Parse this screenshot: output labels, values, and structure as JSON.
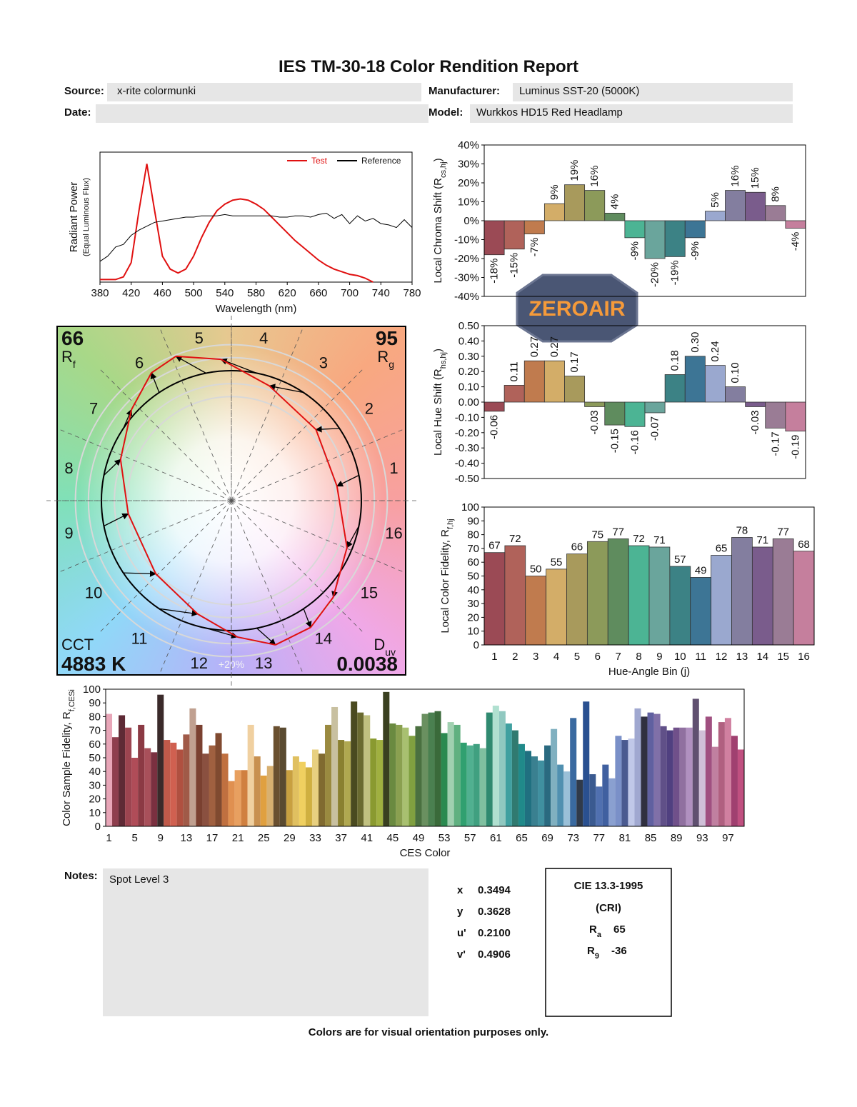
{
  "header": {
    "title": "IES TM-30-18 Color Rendition Report",
    "fields": [
      {
        "label": "Source:",
        "value": "x-rite colormunki"
      },
      {
        "label": "Manufacturer:",
        "value": "Luminus SST-20 (5000K)"
      },
      {
        "label": "Date:"
      },
      {
        "label": "Model:",
        "value": "Wurkkos HD15 Red Headlamp"
      }
    ]
  },
  "logo": {
    "text": "ZEROAIR"
  },
  "vector_graphic": {
    "hue_bins": [
      1,
      2,
      3,
      4,
      5,
      6,
      7,
      8,
      9,
      10,
      11,
      12,
      13,
      14,
      15,
      16
    ],
    "scale_label": "+20%",
    "rf": 66,
    "rf_label": "R",
    "rf_sub": "f",
    "rg": 95,
    "rg_label": "R",
    "rg_sub": "g",
    "cct_label": "CCT",
    "cct": "4883 K",
    "duv_label": "D",
    "duv_sub": "uv",
    "duv": 0.0038
  },
  "chart_data": [
    {
      "type": "line",
      "x": [
        380,
        390,
        400,
        410,
        420,
        430,
        440,
        450,
        460,
        470,
        480,
        490,
        500,
        510,
        520,
        530,
        540,
        550,
        560,
        570,
        580,
        590,
        600,
        610,
        620,
        630,
        640,
        650,
        660,
        670,
        680,
        690,
        700,
        710,
        720,
        730,
        740,
        750,
        760,
        770,
        780
      ],
      "series": [
        {
          "name": "Test",
          "color": "#e01010",
          "values": [
            0.02,
            0.02,
            0.02,
            0.04,
            0.15,
            0.55,
            0.91,
            0.55,
            0.2,
            0.1,
            0.07,
            0.1,
            0.2,
            0.34,
            0.46,
            0.55,
            0.6,
            0.63,
            0.64,
            0.63,
            0.6,
            0.56,
            0.5,
            0.44,
            0.38,
            0.32,
            0.27,
            0.22,
            0.17,
            0.13,
            0.1,
            0.08,
            0.06,
            0.05,
            0.03,
            0,
            null,
            null,
            null,
            null,
            null
          ]
        },
        {
          "name": "Reference",
          "color": "#000000",
          "values": [
            0.16,
            0.2,
            0.27,
            0.29,
            0.36,
            0.4,
            0.43,
            0.46,
            0.47,
            0.48,
            0.49,
            0.5,
            0.5,
            0.51,
            0.51,
            0.51,
            0.52,
            0.51,
            0.51,
            0.51,
            0.51,
            0.51,
            0.51,
            0.5,
            0.5,
            0.51,
            0.51,
            0.5,
            0.52,
            0.53,
            0.49,
            0.52,
            0.45,
            0.51,
            0.47,
            0.49,
            0.45,
            0.44,
            0.42,
            0.48,
            0.42
          ]
        }
      ],
      "xlim": [
        380,
        780
      ],
      "xticks": [
        380,
        420,
        460,
        500,
        540,
        580,
        620,
        660,
        700,
        740,
        780
      ],
      "ylim": [
        0,
        1
      ],
      "xlabel": "Wavelength (nm)",
      "ylabel": "Radiant Power",
      "ylabel_note": "(Equal Luminous Flux)",
      "legend": "upper right"
    },
    {
      "type": "bar",
      "values": [
        -18,
        -15,
        -7,
        9,
        19,
        16,
        4,
        -9,
        -20,
        -19,
        -9,
        5,
        16,
        15,
        8,
        -4
      ],
      "value_labels": [
        "-18%",
        "-15%",
        "-7%",
        "9%",
        "19%",
        "16%",
        "4%",
        "-9%",
        "-20%",
        "-19%",
        "-9%",
        "5%",
        "16%",
        "15%",
        "8%",
        "-4%"
      ],
      "colors": [
        "#9b4a55",
        "#b0625a",
        "#c07b4e",
        "#d3ad68",
        "#a89a5c",
        "#8c9a5a",
        "#5f8c5e",
        "#4cb494",
        "#6aa59c",
        "#3c8285",
        "#3d7595",
        "#9aa8cf",
        "#837e9f",
        "#7a5c8c",
        "#9a7c95",
        "#c57f9d"
      ],
      "ylim": [
        -40,
        40
      ],
      "yticks": [
        {
          "value": 40,
          "label": "40%"
        },
        {
          "value": 30,
          "label": "30%"
        },
        {
          "value": 20,
          "label": "20%"
        },
        {
          "value": 10,
          "label": "10%"
        },
        {
          "value": 0,
          "label": "0%"
        },
        {
          "value": -10,
          "label": "-10%"
        },
        {
          "value": -20,
          "label": "-20%"
        },
        {
          "value": -30,
          "label": "-30%"
        },
        {
          "value": -40,
          "label": "-40%"
        }
      ],
      "ylabel": "Local Chroma Shift (R",
      "ylabel_sub": "cs,hj",
      "ylabel_end": ")"
    },
    {
      "type": "bar",
      "values": [
        -0.06,
        0.11,
        0.27,
        0.27,
        0.17,
        -0.03,
        -0.15,
        -0.16,
        -0.07,
        0.18,
        0.3,
        0.24,
        0.1,
        -0.03,
        -0.17,
        -0.19
      ],
      "value_labels": [
        "-0.06",
        "0.11",
        "0.27",
        "0.27",
        "0.17",
        "-0.03",
        "-0.15",
        "-0.16",
        "-0.07",
        "0.18",
        "0.30",
        "0.24",
        "0.10",
        "-0.03",
        "-0.17",
        "-0.19"
      ],
      "colors": [
        "#9b4a55",
        "#b0625a",
        "#c07b4e",
        "#d3ad68",
        "#a89a5c",
        "#8c9a5a",
        "#5f8c5e",
        "#4cb494",
        "#6aa59c",
        "#3c8285",
        "#3d7595",
        "#9aa8cf",
        "#837e9f",
        "#7a5c8c",
        "#9a7c95",
        "#c57f9d"
      ],
      "ylim": [
        -0.5,
        0.5
      ],
      "yticks": [
        {
          "value": 0.5,
          "label": "0.50"
        },
        {
          "value": 0.4,
          "label": "0.40"
        },
        {
          "value": 0.3,
          "label": "0.30"
        },
        {
          "value": 0.2,
          "label": "0.20"
        },
        {
          "value": 0.1,
          "label": "0.10"
        },
        {
          "value": 0,
          "label": "0.00"
        },
        {
          "value": -0.1,
          "label": "-0.10"
        },
        {
          "value": -0.2,
          "label": "-0.20"
        },
        {
          "value": -0.3,
          "label": "-0.30"
        },
        {
          "value": -0.4,
          "label": "-0.40"
        },
        {
          "value": -0.5,
          "label": "-0.50"
        }
      ],
      "ylabel": "Local Hue Shift (R",
      "ylabel_sub": "hs,hj",
      "ylabel_end": ")"
    },
    {
      "type": "bar",
      "categories": [
        1,
        2,
        3,
        4,
        5,
        6,
        7,
        8,
        9,
        10,
        11,
        12,
        13,
        14,
        15,
        16
      ],
      "values": [
        67,
        72,
        50,
        55,
        66,
        75,
        77,
        72,
        71,
        57,
        49,
        65,
        78,
        71,
        77,
        68
      ],
      "colors": [
        "#9b4a55",
        "#b0625a",
        "#c07b4e",
        "#d3ad68",
        "#a89a5c",
        "#8c9a5a",
        "#5f8c5e",
        "#4cb494",
        "#6aa59c",
        "#3c8285",
        "#3d7595",
        "#9aa8cf",
        "#837e9f",
        "#7a5c8c",
        "#9a7c95",
        "#c57f9d"
      ],
      "ylim": [
        0,
        100
      ],
      "yticks": [
        0,
        10,
        20,
        30,
        40,
        50,
        60,
        70,
        80,
        90,
        100
      ],
      "xlabel": "Hue-Angle Bin (j)",
      "ylabel": "Local Color Fidelity, R",
      "ylabel_sub": "f,hj"
    },
    {
      "type": "bar",
      "categories": [
        1,
        null,
        null,
        null,
        5,
        null,
        null,
        null,
        9,
        null,
        null,
        null,
        13,
        null,
        null,
        null,
        17,
        null,
        null,
        null,
        21,
        null,
        null,
        null,
        25,
        null,
        null,
        null,
        29,
        null,
        null,
        null,
        33,
        null,
        null,
        null,
        37,
        null,
        null,
        null,
        41,
        null,
        null,
        null,
        45,
        null,
        null,
        null,
        49,
        null,
        null,
        null,
        53,
        null,
        null,
        null,
        57,
        null,
        null,
        null,
        61,
        null,
        null,
        null,
        65,
        null,
        null,
        null,
        69,
        null,
        null,
        null,
        73,
        null,
        null,
        null,
        77,
        null,
        null,
        null,
        81,
        null,
        null,
        null,
        85,
        null,
        null,
        null,
        89,
        null,
        null,
        null,
        93,
        null,
        null,
        null,
        97,
        null,
        null
      ],
      "values": [
        82,
        65,
        81,
        72,
        50,
        74,
        57,
        54,
        96,
        63,
        61,
        56,
        67,
        86,
        74,
        53,
        59,
        68,
        53,
        33,
        41,
        41,
        74,
        51,
        37,
        44,
        73,
        72,
        41,
        51,
        47,
        43,
        56,
        53,
        74,
        87,
        63,
        62,
        91,
        83,
        81,
        64,
        63,
        98,
        75,
        74,
        72,
        66,
        73,
        82,
        83,
        84,
        68,
        76,
        74,
        61,
        59,
        60,
        57,
        83,
        88,
        84,
        75,
        70,
        60,
        55,
        51,
        48,
        59,
        71,
        45,
        40,
        79,
        34,
        91,
        38,
        29,
        45,
        35,
        66,
        63,
        64,
        86,
        80,
        83,
        82,
        73,
        70,
        72,
        72,
        72,
        93,
        70,
        80,
        58,
        76,
        79,
        66,
        56
      ],
      "colors": [
        "#e8a6b8",
        "#8e3e4e",
        "#5e2a35",
        "#9c4450",
        "#b04c58",
        "#8b3a44",
        "#a8505a",
        "#7a3040",
        "#3a2a2a",
        "#c05a4a",
        "#d06050",
        "#b05040",
        "#a05a48",
        "#c0a090",
        "#7a4030",
        "#8a5040",
        "#a06040",
        "#804a30",
        "#c07040",
        "#e09050",
        "#e8a060",
        "#d08040",
        "#f0d0a0",
        "#c89050",
        "#e0a040",
        "#d8b070",
        "#6a5030",
        "#5a4a30",
        "#c8a040",
        "#e0c060",
        "#f0d060",
        "#d0b040",
        "#e8d080",
        "#806a30",
        "#9a8a40",
        "#c8c0a0",
        "#8a8030",
        "#b0a850",
        "#4a4a20",
        "#6a6a30",
        "#c0c080",
        "#8a9a30",
        "#a0b040",
        "#3a4020",
        "#6a8a40",
        "#8aa050",
        "#a8c070",
        "#80a040",
        "#4a7040",
        "#6a9060",
        "#4a8050",
        "#3a6a3a",
        "#2a8a50",
        "#a0d0b0",
        "#60b080",
        "#30a070",
        "#50b090",
        "#40a080",
        "#80c0a0",
        "#308a70",
        "#b0e0d0",
        "#90c8c0",
        "#40a0a0",
        "#307a70",
        "#208a8a",
        "#207080",
        "#3a8090",
        "#4090a0",
        "#2a6a80",
        "#80b0c0",
        "#5090b0",
        "#9ac0d8",
        "#3a6aa0",
        "#303a4a",
        "#2a5090",
        "#3a5a90",
        "#5070b0",
        "#4060a0",
        "#8aa0d0",
        "#7a90c8",
        "#4a5a90",
        "#c0c8e8",
        "#a0a8d0",
        "#303040",
        "#6060a0",
        "#8070a8",
        "#605088",
        "#504080",
        "#70508a",
        "#9070a0",
        "#b090c0",
        "#605070",
        "#d0c0d8",
        "#a05080",
        "#c080a0",
        "#b06080",
        "#d080a0",
        "#a04070",
        "#c05080"
      ],
      "ylim": [
        0,
        100
      ],
      "yticks": [
        0,
        10,
        20,
        30,
        40,
        50,
        60,
        70,
        80,
        90,
        100
      ],
      "xlabel": "CES Color",
      "ylabel": "Color Sample Fidelity, R",
      "ylabel_sub": "f,CESi"
    }
  ],
  "notes": {
    "label": "Notes:",
    "text": "Spot Level 3"
  },
  "chromaticity": [
    {
      "label": "x",
      "value": "0.3494"
    },
    {
      "label": "y",
      "value": "0.3628"
    },
    {
      "label": "u'",
      "value": "0.2100"
    },
    {
      "label": "v'",
      "value": "0.4906"
    }
  ],
  "cri": {
    "title": "CIE 13.3-1995",
    "subtitle": "(CRI)",
    "ra": {
      "label": "R",
      "sub": "a",
      "value": 65
    },
    "r9": {
      "label": "R",
      "sub": "9",
      "value": -36
    }
  },
  "footer": "Colors are for visual orientation purposes only."
}
